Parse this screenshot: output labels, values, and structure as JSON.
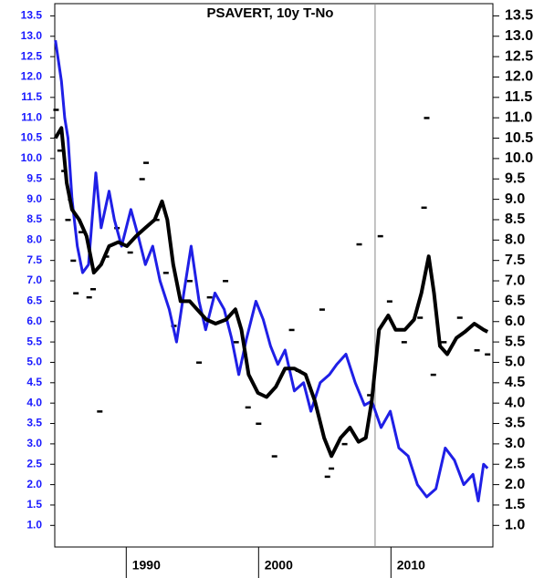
{
  "chart_data": {
    "type": "line",
    "title": "PSAVERT, 10y T-No",
    "xlim": [
      1984.6,
      2017.7
    ],
    "xticks": [
      1990,
      2000,
      2010
    ],
    "ylim": [
      0.47,
      13.8
    ],
    "y2lim": [
      0.47,
      13.8
    ],
    "yticks": [
      {
        "value": 1,
        "label": "1.0"
      },
      {
        "value": 1.5,
        "label": "1.5"
      },
      {
        "value": 2,
        "label": "2.0"
      },
      {
        "value": 2.5,
        "label": "2.5"
      },
      {
        "value": 3,
        "label": "3.0"
      },
      {
        "value": 3.5,
        "label": "3.5"
      },
      {
        "value": 4,
        "label": "4.0"
      },
      {
        "value": 4.5,
        "label": "4.5"
      },
      {
        "value": 5,
        "label": "5.0"
      },
      {
        "value": 5.5,
        "label": "5.5"
      },
      {
        "value": 6,
        "label": "6.0"
      },
      {
        "value": 6.5,
        "label": "6.5"
      },
      {
        "value": 7,
        "label": "7.0"
      },
      {
        "value": 7.5,
        "label": "7.5"
      },
      {
        "value": 8,
        "label": "8.0"
      },
      {
        "value": 8.5,
        "label": "8.5"
      },
      {
        "value": 9,
        "label": "9.0"
      },
      {
        "value": 9.5,
        "label": "9.5"
      },
      {
        "value": 10,
        "label": "10.0"
      },
      {
        "value": 10.5,
        "label": "10.5"
      },
      {
        "value": 11,
        "label": "11.0"
      },
      {
        "value": 11.5,
        "label": "11.5"
      },
      {
        "value": 12,
        "label": "12.0"
      },
      {
        "value": 12.5,
        "label": "12.5"
      },
      {
        "value": 13,
        "label": "13.0"
      },
      {
        "value": 13.5,
        "label": "13.5"
      }
    ],
    "y2ticks": [
      {
        "value": 1,
        "label": "1.0"
      },
      {
        "value": 1.5,
        "label": "1.5"
      },
      {
        "value": 2,
        "label": "2.0"
      },
      {
        "value": 2.5,
        "label": "2.5"
      },
      {
        "value": 3,
        "label": "3.0"
      },
      {
        "value": 3.5,
        "label": "3.5"
      },
      {
        "value": 4,
        "label": "4.0"
      },
      {
        "value": 4.5,
        "label": "4.5"
      },
      {
        "value": 5,
        "label": "5.0"
      },
      {
        "value": 5.5,
        "label": "5.5"
      },
      {
        "value": 6,
        "label": "6.0"
      },
      {
        "value": 6.5,
        "label": "6.5"
      },
      {
        "value": 7,
        "label": "7.0"
      },
      {
        "value": 7.5,
        "label": "7.5"
      },
      {
        "value": 8,
        "label": "8.0"
      },
      {
        "value": 8.5,
        "label": "8.5"
      },
      {
        "value": 9,
        "label": "9.0"
      },
      {
        "value": 9.5,
        "label": "9.5"
      },
      {
        "value": 10,
        "label": "10.0"
      },
      {
        "value": 10.5,
        "label": "10.5"
      },
      {
        "value": 11,
        "label": "11.0"
      },
      {
        "value": 11.5,
        "label": "11.5"
      },
      {
        "value": 12,
        "label": "12.0"
      },
      {
        "value": 12.5,
        "label": "12.5"
      },
      {
        "value": 13,
        "label": "13.0"
      },
      {
        "value": 13.5,
        "label": "13.5"
      }
    ],
    "left_axis_color": "#1a1aff",
    "right_axis_color": "#000000",
    "vline": 2008.8,
    "series": [
      {
        "color": "#000000",
        "kind": "dash",
        "axis": "y2",
        "x": [
          1984.7,
          1985.0,
          1985.3,
          1985.6,
          1985.8,
          1986.0,
          1986.2,
          1986.6,
          1987.2,
          1987.5,
          1988.0,
          1988.5,
          1989.3,
          1990.3,
          1991.2,
          1991.5,
          1992.3,
          1993.0,
          1993.6,
          1994.8,
          1995.5,
          1996.3,
          1997.5,
          1998.3,
          1999.2,
          2000.0,
          2001.2,
          2002.5,
          2003.0,
          2004.8,
          2005.2,
          2005.5,
          2006.5,
          2007.6,
          2008.4,
          2009.2,
          2009.9,
          2011.0,
          2012.2,
          2012.5,
          2012.7,
          2013.2,
          2014.0,
          2015.2,
          2016.5,
          2017.3
        ],
        "values": [
          11.2,
          10.2,
          9.7,
          8.5,
          9.0,
          7.5,
          6.7,
          8.2,
          6.6,
          6.8,
          3.8,
          7.6,
          8.3,
          7.7,
          9.5,
          9.9,
          8.5,
          7.2,
          5.9,
          7.0,
          5.0,
          6.6,
          7.0,
          5.5,
          3.9,
          3.5,
          2.7,
          5.8,
          4.8,
          6.3,
          2.2,
          2.4,
          3.0,
          7.9,
          4.2,
          8.1,
          6.5,
          5.5,
          6.1,
          8.8,
          11.0,
          4.7,
          5.5,
          6.1,
          5.3,
          5.2
        ]
      },
      {
        "color": "#1f1fe6",
        "kind": "line",
        "width": 3,
        "x": [
          1984.65,
          1985.1,
          1985.35,
          1985.6,
          1985.9,
          1986.3,
          1986.7,
          1987.15,
          1987.7,
          1988.1,
          1988.7,
          1989.1,
          1989.65,
          1990.35,
          1990.9,
          1991.45,
          1992.0,
          1992.55,
          1993.25,
          1993.8,
          1994.35,
          1994.9,
          1995.5,
          1996.0,
          1996.7,
          1997.4,
          1997.95,
          1998.5,
          1999.1,
          1999.8,
          2000.35,
          2000.9,
          2001.45,
          2002.0,
          2002.7,
          2003.4,
          2003.95,
          2004.65,
          2005.35,
          2005.9,
          2006.6,
          2007.3,
          2008.0,
          2008.55,
          2009.25,
          2009.95,
          2010.6,
          2011.3,
          2012.0,
          2012.7,
          2013.4,
          2014.1,
          2014.8,
          2015.5,
          2016.2,
          2016.6,
          2017.0,
          2017.3
        ],
        "values": [
          12.9,
          11.9,
          11.0,
          10.5,
          9.0,
          7.85,
          7.2,
          7.4,
          9.65,
          8.3,
          9.2,
          8.5,
          7.85,
          8.75,
          8.1,
          7.4,
          7.85,
          7.0,
          6.3,
          5.5,
          6.7,
          7.85,
          6.5,
          5.8,
          6.7,
          6.3,
          5.6,
          4.7,
          5.6,
          6.5,
          6.05,
          5.4,
          4.95,
          5.3,
          4.3,
          4.5,
          3.8,
          4.5,
          4.7,
          4.95,
          5.2,
          4.5,
          3.95,
          4.05,
          3.4,
          3.8,
          2.9,
          2.7,
          2.0,
          1.7,
          1.9,
          2.9,
          2.6,
          2.0,
          2.25,
          1.6,
          2.5,
          2.4
        ]
      },
      {
        "color": "#000000",
        "kind": "line",
        "width": 4,
        "axis": "y2",
        "x": [
          1984.65,
          1985.1,
          1985.5,
          1985.9,
          1986.45,
          1987.0,
          1987.55,
          1988.1,
          1988.7,
          1989.4,
          1990.05,
          1990.75,
          1991.45,
          1992.15,
          1992.7,
          1993.1,
          1993.55,
          1994.1,
          1994.8,
          1995.35,
          1996.05,
          1996.75,
          1997.55,
          1998.25,
          1998.7,
          1999.25,
          1999.95,
          2000.6,
          2001.3,
          2002.0,
          2002.7,
          2003.55,
          2004.25,
          2004.95,
          2005.5,
          2006.2,
          2006.9,
          2007.55,
          2008.1,
          2008.55,
          2009.1,
          2009.8,
          2010.35,
          2011.05,
          2011.75,
          2012.3,
          2012.85,
          2013.25,
          2013.7,
          2014.25,
          2014.95,
          2015.6,
          2016.3,
          2017.0,
          2017.3
        ],
        "values": [
          10.5,
          10.75,
          9.4,
          8.75,
          8.5,
          8.1,
          7.2,
          7.4,
          7.85,
          7.95,
          7.85,
          8.1,
          8.3,
          8.5,
          8.95,
          8.5,
          7.4,
          6.5,
          6.5,
          6.3,
          6.05,
          5.95,
          6.05,
          6.3,
          5.8,
          4.7,
          4.25,
          4.15,
          4.4,
          4.85,
          4.85,
          4.7,
          4.05,
          3.15,
          2.7,
          3.15,
          3.4,
          3.05,
          3.15,
          4.05,
          5.8,
          6.15,
          5.8,
          5.8,
          6.05,
          6.7,
          7.6,
          6.7,
          5.4,
          5.2,
          5.6,
          5.75,
          5.95,
          5.8,
          5.75
        ]
      }
    ]
  }
}
